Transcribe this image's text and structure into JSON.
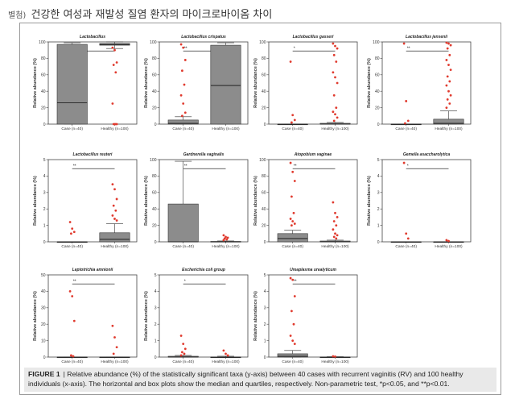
{
  "page_title": {
    "prefix": "별첨)",
    "text": "건강한 여성과 재발성 질염 환자의 마이크로바이옴 차이"
  },
  "caption": {
    "label": "FIGURE 1",
    "text": "| Relative abundance (%) of the statistically significant taxa (y-axis) between 40 cases with recurrent vaginitis (RV) and 100 healthy individuals (x-axis). The horizontal and box plots show the median and quartiles, respectively. Non-parametric test, *p<0.05, and **p<0.01."
  },
  "colors": {
    "box_fill": "#8c8c8c",
    "point": "#e03a2e",
    "point_light": "#f2a58c",
    "bracket": "#333333"
  },
  "chart_data": [
    {
      "type": "box",
      "title": "Lactobacillus",
      "ylabel": "Relative abundance (%)",
      "categories": [
        "Case (n=40)",
        "Healthy (n=100)"
      ],
      "ylim": [
        0,
        100
      ],
      "yticks": [
        0,
        20,
        40,
        60,
        80,
        100
      ],
      "significance": "**",
      "boxes": [
        {
          "min": 0,
          "q1": 0,
          "median": 26,
          "q3": 97,
          "max": 99
        },
        {
          "min": 92,
          "q1": 96,
          "median": 97,
          "q3": 98,
          "max": 100
        }
      ],
      "outliers": [
        [],
        [
          93,
          90,
          75,
          72,
          63,
          25,
          0,
          0,
          0,
          0
        ]
      ]
    },
    {
      "type": "box",
      "title": "Lactobacillus crispatus",
      "ylabel": "Relative abundance (%)",
      "categories": [
        "Case (n=40)",
        "Healthy (n=100)"
      ],
      "ylim": [
        0,
        100
      ],
      "yticks": [
        0,
        20,
        40,
        60,
        80,
        100
      ],
      "significance": "**",
      "boxes": [
        {
          "min": 0,
          "q1": 0,
          "median": 1,
          "q3": 5,
          "max": 9
        },
        {
          "min": 0,
          "q1": 0,
          "median": 47,
          "q3": 96,
          "max": 99
        }
      ],
      "outliers": [
        [
          97,
          93,
          78,
          65,
          48,
          35,
          25,
          14,
          10
        ],
        []
      ]
    },
    {
      "type": "box",
      "title": "Lactobacillus gasseri",
      "ylabel": "Relative abundance (%)",
      "categories": [
        "Case (n=40)",
        "Healthy (n=100)"
      ],
      "ylim": [
        0,
        100
      ],
      "yticks": [
        0,
        20,
        40,
        60,
        80,
        100
      ],
      "significance": "*",
      "boxes": [
        {
          "min": 0,
          "q1": 0,
          "median": 0,
          "q3": 0,
          "max": 0
        },
        {
          "min": 0,
          "q1": 0,
          "median": 0,
          "q3": 1,
          "max": 2
        }
      ],
      "outliers": [
        [
          76,
          11,
          5,
          2
        ],
        [
          98,
          95,
          92,
          84,
          76,
          63,
          57,
          50,
          35,
          20,
          15,
          12,
          8,
          4
        ]
      ]
    },
    {
      "type": "box",
      "title": "Lactobacillus jensenii",
      "ylabel": "Relative abundance (%)",
      "categories": [
        "Case (n=40)",
        "Healthy (n=100)"
      ],
      "ylim": [
        0,
        100
      ],
      "yticks": [
        0,
        20,
        40,
        60,
        80,
        100
      ],
      "significance": "**",
      "boxes": [
        {
          "min": 0,
          "q1": 0,
          "median": 0,
          "q3": 0,
          "max": 0
        },
        {
          "min": 0,
          "q1": 0,
          "median": 1,
          "q3": 6,
          "max": 16
        }
      ],
      "outliers": [
        [
          98,
          28,
          4,
          1
        ],
        [
          99,
          98,
          96,
          92,
          84,
          78,
          72,
          66,
          58,
          52,
          47,
          40,
          35,
          30,
          25,
          20
        ]
      ]
    },
    {
      "type": "box",
      "title": "Lactobacillus reuteri",
      "ylabel": "Relative abundance (%)",
      "categories": [
        "Case (n=40)",
        "Healthy (n=100)"
      ],
      "ylim": [
        0,
        5
      ],
      "yticks": [
        0,
        1,
        2,
        3,
        4,
        5
      ],
      "significance": "**",
      "boxes": [
        {
          "min": 0,
          "q1": 0,
          "median": 0,
          "q3": 0,
          "max": 0
        },
        {
          "min": 0,
          "q1": 0,
          "median": 0.15,
          "q3": 0.55,
          "max": 1.1
        }
      ],
      "outliers": [
        [
          1.2,
          0.8,
          0.6,
          0.5
        ],
        [
          3.5,
          3.2,
          2.6,
          2.2,
          1.9,
          1.6,
          1.4,
          1.3
        ]
      ]
    },
    {
      "type": "box",
      "title": "Gardnerella vaginalis",
      "ylabel": "Relative abundance (%)",
      "categories": [
        "Case (n=40)",
        "Healthy (n=100)"
      ],
      "ylim": [
        0,
        100
      ],
      "yticks": [
        0,
        20,
        40,
        60,
        80,
        100
      ],
      "significance": "**",
      "boxes": [
        {
          "min": 0,
          "q1": 0,
          "median": 0,
          "q3": 46,
          "max": 98
        },
        {
          "min": 0,
          "q1": 0,
          "median": 0,
          "q3": 0.5,
          "max": 1
        }
      ],
      "outliers": [
        [],
        [
          8,
          6,
          5,
          4,
          3,
          2
        ]
      ]
    },
    {
      "type": "box",
      "title": "Atopobium vaginae",
      "ylabel": "Relative abundance (%)",
      "categories": [
        "Case (n=40)",
        "Healthy (n=100)"
      ],
      "ylim": [
        0,
        100
      ],
      "yticks": [
        0,
        20,
        40,
        60,
        80,
        100
      ],
      "significance": "**",
      "boxes": [
        {
          "min": 0,
          "q1": 0,
          "median": 4,
          "q3": 10,
          "max": 14
        },
        {
          "min": 0,
          "q1": 0,
          "median": 0,
          "q3": 1,
          "max": 2
        }
      ],
      "outliers": [
        [
          96,
          85,
          74,
          55,
          35,
          28,
          25,
          22,
          20
        ],
        [
          48,
          35,
          30,
          25,
          20,
          15,
          10,
          8,
          6,
          4
        ]
      ]
    },
    {
      "type": "box",
      "title": "Gemella asaccharolytica",
      "ylabel": "Relative abundance (%)",
      "categories": [
        "Case (n=40)",
        "Healthy (n=100)"
      ],
      "ylim": [
        0,
        5
      ],
      "yticks": [
        0,
        1,
        2,
        3,
        4,
        5
      ],
      "significance": "*",
      "boxes": [
        {
          "min": 0,
          "q1": 0,
          "median": 0,
          "q3": 0,
          "max": 0
        },
        {
          "min": 0,
          "q1": 0,
          "median": 0,
          "q3": 0,
          "max": 0
        }
      ],
      "outliers": [
        [
          4.8,
          0.5,
          0.2
        ],
        [
          0.1,
          0.05
        ]
      ]
    },
    {
      "type": "box",
      "title": "Leptotrichia amnionii",
      "ylabel": "Relative abundance (%)",
      "categories": [
        "Case (n=40)",
        "Healthy (n=100)"
      ],
      "ylim": [
        0,
        50
      ],
      "yticks": [
        0,
        10,
        20,
        30,
        40,
        50
      ],
      "significance": "**",
      "boxes": [
        {
          "min": 0,
          "q1": 0,
          "median": 0,
          "q3": 0,
          "max": 0
        },
        {
          "min": 0,
          "q1": 0,
          "median": 0,
          "q3": 0,
          "max": 0
        }
      ],
      "outliers": [
        [
          40,
          37,
          22,
          1,
          0.5
        ],
        [
          19,
          12,
          6,
          2
        ]
      ]
    },
    {
      "type": "box",
      "title": "Escherichia coli group",
      "ylabel": "Relative abundance (%)",
      "categories": [
        "Case (n=40)",
        "Healthy (n=100)"
      ],
      "ylim": [
        0,
        5
      ],
      "yticks": [
        0,
        1,
        2,
        3,
        4,
        5
      ],
      "significance": "*",
      "boxes": [
        {
          "min": 0,
          "q1": 0,
          "median": 0,
          "q3": 0.05,
          "max": 0.1
        },
        {
          "min": 0,
          "q1": 0,
          "median": 0,
          "q3": 0,
          "max": 0.05
        }
      ],
      "outliers": [
        [
          1.3,
          0.8,
          0.5,
          0.3,
          0.2,
          0.1
        ],
        [
          0.4,
          0.2,
          0.1
        ]
      ]
    },
    {
      "type": "box",
      "title": "Ureaplasma urealyticum",
      "ylabel": "Relative abundance (%)",
      "categories": [
        "Case (n=40)",
        "Healthy (n=100)"
      ],
      "ylim": [
        0,
        5
      ],
      "yticks": [
        0,
        1,
        2,
        3,
        4,
        5
      ],
      "significance": "**",
      "boxes": [
        {
          "min": 0,
          "q1": 0,
          "median": 0.05,
          "q3": 0.2,
          "max": 0.4
        },
        {
          "min": 0,
          "q1": 0,
          "median": 0,
          "q3": 0,
          "max": 0.02
        }
      ],
      "outliers": [
        [
          4.8,
          4.7,
          3.7,
          2.8,
          2,
          1.3,
          1,
          0.8
        ],
        [
          0.05,
          0.03
        ]
      ]
    }
  ]
}
